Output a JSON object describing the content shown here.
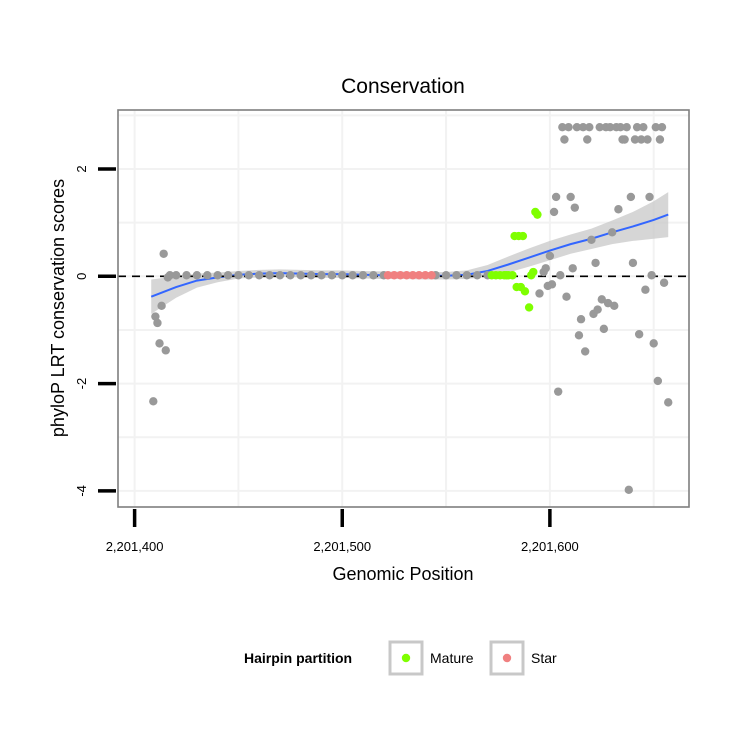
{
  "chart_data": {
    "type": "scatter",
    "title": "Conservation",
    "xlabel": "Genomic Position",
    "ylabel": "phyloP LRT conservation scores",
    "xlim": [
      2201392,
      2201667
    ],
    "ylim": [
      -4.3,
      3.1
    ],
    "x_ticks": [
      2201400,
      2201500,
      2201600
    ],
    "x_tick_labels": [
      "2,201,400",
      "2,201,500",
      "2,201,600"
    ],
    "y_ticks": [
      2,
      0,
      -2,
      -4
    ],
    "y_tick_labels": [
      "2",
      "0",
      "-2",
      "-4"
    ],
    "reference_line": {
      "y": 0,
      "style": "dashed"
    },
    "grid": true,
    "colors": {
      "Other": "#999999",
      "Mature": "#7FFF00",
      "Star": "#F08080",
      "smooth": "#3366FF",
      "ribbon": "#C8C8C8"
    },
    "legend": {
      "title": "Hairpin partition",
      "position": "bottom",
      "entries": [
        {
          "name": "Mature",
          "color": "#7FFF00"
        },
        {
          "name": "Star",
          "color": "#F08080"
        }
      ]
    },
    "series": [
      {
        "name": "Other",
        "points": [
          [
            2201409,
            -2.33
          ],
          [
            2201410,
            -0.75
          ],
          [
            2201411,
            -0.87
          ],
          [
            2201412,
            -1.25
          ],
          [
            2201413,
            -0.55
          ],
          [
            2201414,
            0.42
          ],
          [
            2201415,
            -1.38
          ],
          [
            2201416,
            -0.02
          ],
          [
            2201417,
            0.02
          ],
          [
            2201420,
            0.02
          ],
          [
            2201425,
            0.02
          ],
          [
            2201430,
            0.02
          ],
          [
            2201435,
            0.02
          ],
          [
            2201440,
            0.02
          ],
          [
            2201445,
            0.02
          ],
          [
            2201450,
            0.02
          ],
          [
            2201455,
            0.02
          ],
          [
            2201460,
            0.02
          ],
          [
            2201465,
            0.02
          ],
          [
            2201470,
            0.02
          ],
          [
            2201475,
            0.02
          ],
          [
            2201480,
            0.02
          ],
          [
            2201485,
            0.02
          ],
          [
            2201490,
            0.02
          ],
          [
            2201495,
            0.02
          ],
          [
            2201500,
            0.02
          ],
          [
            2201505,
            0.02
          ],
          [
            2201510,
            0.02
          ],
          [
            2201515,
            0.02
          ],
          [
            2201520,
            0.02
          ],
          [
            2201545,
            0.02
          ],
          [
            2201550,
            0.02
          ],
          [
            2201555,
            0.02
          ],
          [
            2201560,
            0.02
          ],
          [
            2201565,
            0.02
          ],
          [
            2201570,
            0.02
          ],
          [
            2201595,
            -0.32
          ],
          [
            2201597,
            0.08
          ],
          [
            2201598,
            0.15
          ],
          [
            2201599,
            -0.18
          ],
          [
            2201600,
            0.38
          ],
          [
            2201601,
            -0.15
          ],
          [
            2201602,
            1.2
          ],
          [
            2201603,
            1.48
          ],
          [
            2201604,
            -2.15
          ],
          [
            2201605,
            0.02
          ],
          [
            2201606,
            2.78
          ],
          [
            2201607,
            2.55
          ],
          [
            2201608,
            -0.38
          ],
          [
            2201609,
            2.78
          ],
          [
            2201610,
            1.48
          ],
          [
            2201611,
            0.15
          ],
          [
            2201612,
            1.28
          ],
          [
            2201613,
            2.78
          ],
          [
            2201614,
            -1.1
          ],
          [
            2201615,
            -0.8
          ],
          [
            2201616,
            2.78
          ],
          [
            2201617,
            -1.4
          ],
          [
            2201618,
            2.55
          ],
          [
            2201619,
            2.78
          ],
          [
            2201620,
            0.68
          ],
          [
            2201621,
            -0.7
          ],
          [
            2201622,
            0.25
          ],
          [
            2201623,
            -0.62
          ],
          [
            2201624,
            2.78
          ],
          [
            2201625,
            -0.43
          ],
          [
            2201626,
            -0.98
          ],
          [
            2201627,
            2.78
          ],
          [
            2201628,
            -0.5
          ],
          [
            2201629,
            2.78
          ],
          [
            2201630,
            0.82
          ],
          [
            2201631,
            -0.55
          ],
          [
            2201632,
            2.78
          ],
          [
            2201633,
            1.25
          ],
          [
            2201634,
            2.78
          ],
          [
            2201635,
            2.55
          ],
          [
            2201636,
            2.55
          ],
          [
            2201637,
            2.78
          ],
          [
            2201638,
            -3.98
          ],
          [
            2201639,
            1.48
          ],
          [
            2201640,
            0.25
          ],
          [
            2201641,
            2.55
          ],
          [
            2201642,
            2.78
          ],
          [
            2201643,
            -1.08
          ],
          [
            2201644,
            2.55
          ],
          [
            2201645,
            2.78
          ],
          [
            2201646,
            -0.25
          ],
          [
            2201647,
            2.55
          ],
          [
            2201648,
            1.48
          ],
          [
            2201649,
            0.02
          ],
          [
            2201650,
            -1.25
          ],
          [
            2201651,
            2.78
          ],
          [
            2201652,
            -1.95
          ],
          [
            2201653,
            2.55
          ],
          [
            2201654,
            2.78
          ],
          [
            2201655,
            -0.12
          ],
          [
            2201657,
            -2.35
          ]
        ]
      },
      {
        "name": "Star",
        "points": [
          [
            2201522,
            0.02
          ],
          [
            2201525,
            0.02
          ],
          [
            2201528,
            0.02
          ],
          [
            2201531,
            0.02
          ],
          [
            2201534,
            0.02
          ],
          [
            2201537,
            0.02
          ],
          [
            2201540,
            0.02
          ],
          [
            2201543,
            0.02
          ]
        ]
      },
      {
        "name": "Mature",
        "points": [
          [
            2201572,
            0.02
          ],
          [
            2201574,
            0.02
          ],
          [
            2201576,
            0.02
          ],
          [
            2201578,
            0.02
          ],
          [
            2201579,
            0.02
          ],
          [
            2201580,
            0.02
          ],
          [
            2201582,
            0.02
          ],
          [
            2201583,
            0.75
          ],
          [
            2201584,
            -0.2
          ],
          [
            2201585,
            0.75
          ],
          [
            2201586,
            -0.2
          ],
          [
            2201587,
            0.75
          ],
          [
            2201588,
            -0.28
          ],
          [
            2201590,
            -0.58
          ],
          [
            2201591,
            0.02
          ],
          [
            2201592,
            0.08
          ],
          [
            2201593,
            1.2
          ],
          [
            2201594,
            1.15
          ]
        ]
      }
    ],
    "smooth_fit": {
      "x": [
        2201408,
        2201420,
        2201430,
        2201440,
        2201450,
        2201460,
        2201470,
        2201480,
        2201490,
        2201500,
        2201510,
        2201520,
        2201530,
        2201540,
        2201550,
        2201560,
        2201570,
        2201580,
        2201590,
        2201600,
        2201610,
        2201620,
        2201630,
        2201640,
        2201650,
        2201657
      ],
      "y": [
        -0.38,
        -0.2,
        -0.08,
        -0.02,
        0.03,
        0.05,
        0.06,
        0.05,
        0.04,
        0.04,
        0.03,
        0.02,
        0.02,
        0.01,
        0.01,
        0.03,
        0.1,
        0.22,
        0.35,
        0.48,
        0.6,
        0.7,
        0.82,
        0.93,
        1.05,
        1.15
      ],
      "se": [
        0.32,
        0.2,
        0.13,
        0.09,
        0.07,
        0.07,
        0.07,
        0.07,
        0.07,
        0.07,
        0.07,
        0.07,
        0.07,
        0.07,
        0.07,
        0.08,
        0.11,
        0.15,
        0.17,
        0.18,
        0.18,
        0.19,
        0.22,
        0.27,
        0.35,
        0.42
      ]
    }
  }
}
